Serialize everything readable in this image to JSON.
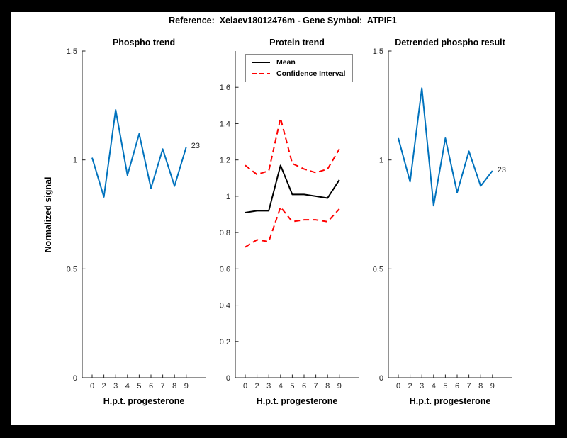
{
  "figure_title": "Reference:  Xelaev18012476m - Gene Symbol:  ATPIF1",
  "colors": {
    "background": "#000000",
    "figure_background": "#ffffff",
    "accent_blue": "#0072BD",
    "ci_red": "#FF0000",
    "mean_black": "#000000",
    "axis": "#262626",
    "tick_label": "#262626",
    "legend_border": "#8a8a8a"
  },
  "chart_data": [
    {
      "type": "line",
      "title": "Phospho trend",
      "xlabel": "H.p.t. progesterone",
      "ylabel": "Normalized signal",
      "x_tick_labels": [
        "0",
        "2",
        "3",
        "4",
        "5",
        "6",
        "7",
        "8",
        "9"
      ],
      "y_ticks": [
        0,
        0.5,
        1,
        1.5
      ],
      "y_tick_labels": [
        "0",
        "0.5",
        "1",
        "1.5"
      ],
      "ylim": [
        0,
        1.5
      ],
      "grid": false,
      "end_label": "23",
      "series": [
        {
          "name": "phospho-signal",
          "color": "#0072BD",
          "style": "solid",
          "values": [
            1.01,
            0.83,
            1.23,
            0.93,
            1.12,
            0.87,
            1.05,
            0.88,
            1.06
          ]
        }
      ]
    },
    {
      "type": "line",
      "title": "Protein trend",
      "xlabel": "H.p.t. progesterone",
      "ylabel": "",
      "x_tick_labels": [
        "0",
        "2",
        "3",
        "4",
        "5",
        "6",
        "7",
        "8",
        "9"
      ],
      "y_ticks": [
        0,
        0.2,
        0.4,
        0.6,
        0.8,
        1,
        1.2,
        1.4,
        1.6
      ],
      "y_tick_labels": [
        "0",
        "0.2",
        "0.4",
        "0.6",
        "0.8",
        "1",
        "1.2",
        "1.4",
        "1.6"
      ],
      "ylim": [
        0,
        1.8
      ],
      "grid": false,
      "legend": {
        "position": "top-left",
        "entries": [
          "Mean",
          "Confidence Interval"
        ]
      },
      "series": [
        {
          "name": "mean",
          "color": "#000000",
          "style": "solid",
          "values": [
            0.91,
            0.92,
            0.92,
            1.17,
            1.01,
            1.01,
            1.0,
            0.99,
            1.09
          ]
        },
        {
          "name": "ci-upper",
          "color": "#FF0000",
          "style": "dashed",
          "values": [
            1.17,
            1.12,
            1.14,
            1.43,
            1.18,
            1.15,
            1.13,
            1.15,
            1.26
          ]
        },
        {
          "name": "ci-lower",
          "color": "#FF0000",
          "style": "dashed",
          "values": [
            0.72,
            0.76,
            0.75,
            0.94,
            0.86,
            0.87,
            0.87,
            0.86,
            0.93
          ]
        }
      ]
    },
    {
      "type": "line",
      "title": "Detrended phospho result",
      "xlabel": "H.p.t. progesterone",
      "ylabel": "",
      "x_tick_labels": [
        "0",
        "2",
        "3",
        "4",
        "5",
        "6",
        "7",
        "8",
        "9"
      ],
      "y_ticks": [
        0,
        0.5,
        1,
        1.5
      ],
      "y_tick_labels": [
        "0",
        "0.5",
        "1",
        "1.5"
      ],
      "ylim": [
        0,
        1.5
      ],
      "grid": false,
      "end_label": "23",
      "series": [
        {
          "name": "detrended-phospho-signal",
          "color": "#0072BD",
          "style": "solid",
          "values": [
            1.1,
            0.9,
            1.33,
            0.79,
            1.1,
            0.85,
            1.04,
            0.88,
            0.95
          ]
        }
      ]
    }
  ]
}
